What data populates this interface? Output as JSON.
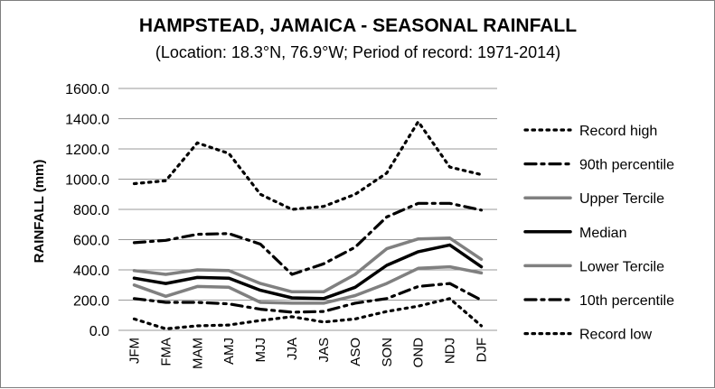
{
  "chart_data": {
    "type": "line",
    "title": "HAMPSTEAD, JAMAICA - SEASONAL RAINFALL",
    "subtitle": "(Location: 18.3°N, 76.9°W; Period of record: 1971-2014)",
    "xlabel": "",
    "ylabel": "RAINFALL (mm)",
    "ylim": [
      0,
      1600
    ],
    "yticks": [
      "0.0",
      "200.0",
      "400.0",
      "600.0",
      "800.0",
      "1000.0",
      "1200.0",
      "1400.0",
      "1600.0"
    ],
    "grid": true,
    "legend_position": "right",
    "categories": [
      "JFM",
      "FMA",
      "MAM",
      "AMJ",
      "MJJ",
      "JJA",
      "JAS",
      "ASO",
      "SON",
      "OND",
      "NDJ",
      "DJF"
    ],
    "series": [
      {
        "name": "Record high",
        "style": "dotted",
        "color": "#000000",
        "values": [
          970,
          990,
          1240,
          1170,
          900,
          800,
          820,
          900,
          1040,
          1380,
          1080,
          1030
        ]
      },
      {
        "name": "90th percentile",
        "style": "dashdot",
        "color": "#000000",
        "values": [
          580,
          595,
          635,
          640,
          570,
          370,
          440,
          550,
          750,
          840,
          840,
          795
        ]
      },
      {
        "name": "Upper Tercile",
        "style": "solid",
        "color": "#808080",
        "values": [
          395,
          370,
          400,
          395,
          310,
          255,
          255,
          370,
          540,
          605,
          610,
          470
        ]
      },
      {
        "name": "Median",
        "style": "solid",
        "color": "#000000",
        "values": [
          345,
          310,
          350,
          345,
          265,
          215,
          210,
          285,
          430,
          520,
          565,
          420
        ]
      },
      {
        "name": "Lower Tercile",
        "style": "solid",
        "color": "#808080",
        "values": [
          300,
          225,
          290,
          285,
          185,
          180,
          180,
          230,
          310,
          410,
          420,
          380
        ]
      },
      {
        "name": "10th percentile",
        "style": "dashdot",
        "color": "#000000",
        "values": [
          210,
          185,
          185,
          175,
          140,
          120,
          125,
          180,
          210,
          290,
          310,
          200
        ]
      },
      {
        "name": "Record low",
        "style": "dotted",
        "color": "#000000",
        "values": [
          75,
          10,
          30,
          35,
          65,
          90,
          55,
          75,
          125,
          160,
          210,
          30
        ]
      }
    ]
  }
}
